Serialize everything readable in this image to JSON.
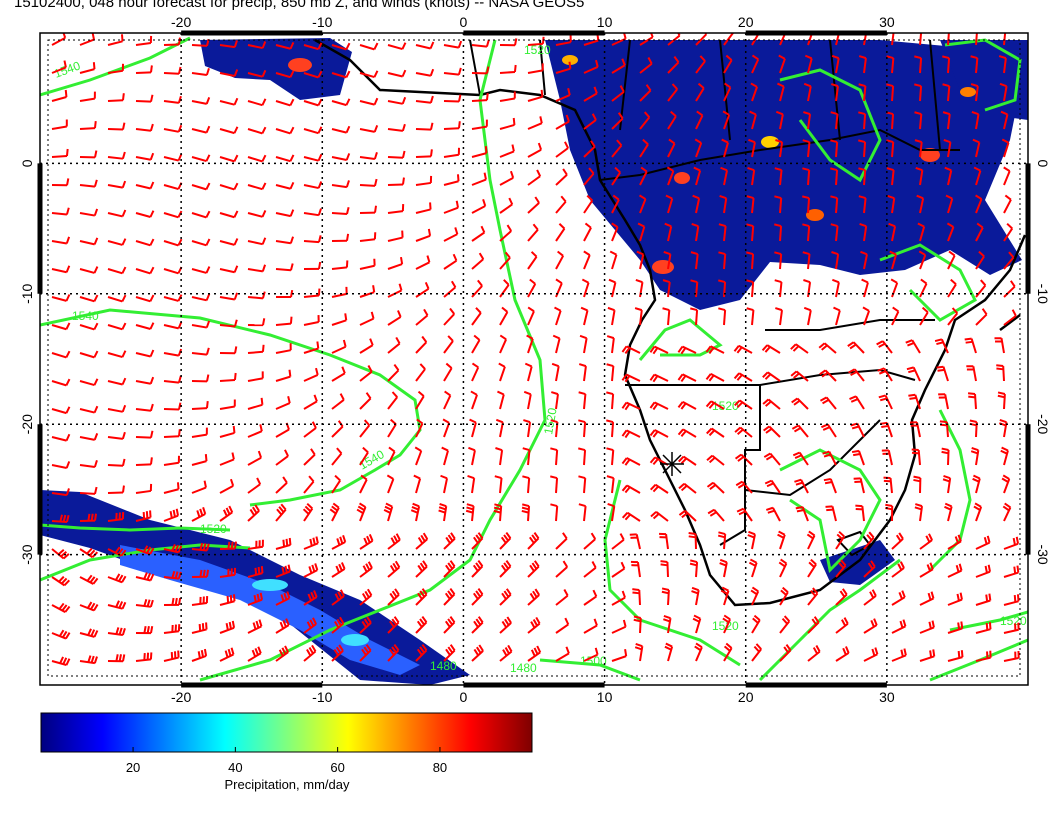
{
  "title": "15102400, 048 hour forecast for precip, 850 mb Z, and winds (knots) -- NASA GEOS5",
  "map": {
    "lon_range": [
      -30,
      40
    ],
    "lat_range": [
      -40,
      10
    ],
    "lon_ticks": [
      "-20",
      "-10",
      "0",
      "10",
      "20",
      "30"
    ],
    "lat_ticks": [
      "0",
      "-10",
      "-20",
      "-30"
    ],
    "grid_lines": true,
    "colors": {
      "wind_barbs": "#ff0000",
      "height_contours": "#33ee33",
      "coastlines": "#000000",
      "frame": "#000000"
    },
    "contour_labels": [
      "1540",
      "1540",
      "1540",
      "1520",
      "1520",
      "1520",
      "1520",
      "1520",
      "1520",
      "1500",
      "1480",
      "1480"
    ]
  },
  "colorbar": {
    "label": "Precipitation, mm/day",
    "ticks": [
      "20",
      "40",
      "60",
      "80"
    ],
    "tick_values": [
      20,
      40,
      60,
      80
    ],
    "range": [
      2,
      98
    ],
    "colors": [
      "#00007f",
      "#0000ff",
      "#007fff",
      "#00ffff",
      "#7fff7f",
      "#ffff00",
      "#ff7f00",
      "#ff0000",
      "#7f0000"
    ]
  }
}
